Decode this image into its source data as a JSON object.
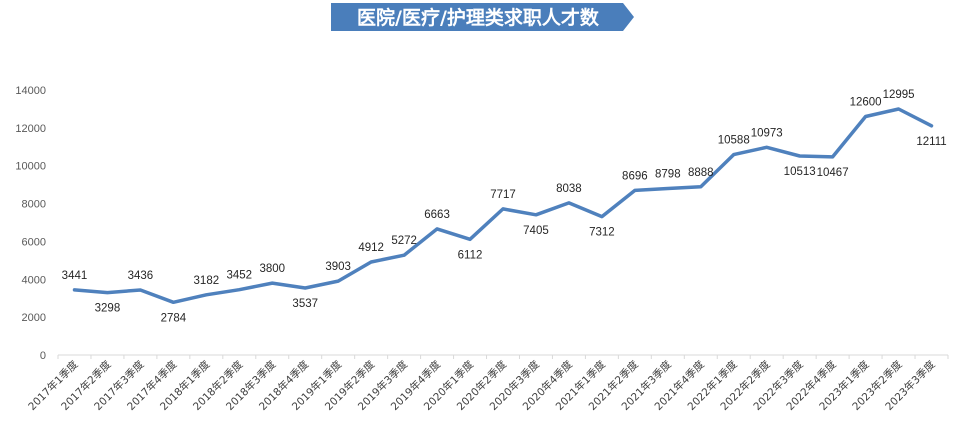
{
  "chart_data": {
    "type": "line",
    "title": "医院/医疗/护理类求职人才数",
    "xlabel": "",
    "ylabel": "",
    "categories": [
      "2017年1季度",
      "2017年2季度",
      "2017年3季度",
      "2017年4季度",
      "2018年1季度",
      "2018年2季度",
      "2018年3季度",
      "2018年4季度",
      "2019年1季度",
      "2019年2季度",
      "2019年3季度",
      "2019年4季度",
      "2020年1季度",
      "2020年2季度",
      "2020年3季度",
      "2020年4季度",
      "2021年1季度",
      "2021年2季度",
      "2021年3季度",
      "2021年4季度",
      "2022年1季度",
      "2022年2季度",
      "2022年3季度",
      "2022年4季度",
      "2023年1季度",
      "2023年2季度",
      "2023年3季度"
    ],
    "values": [
      3441,
      3298,
      3436,
      2784,
      3182,
      3452,
      3800,
      3537,
      3903,
      4912,
      5272,
      6663,
      6112,
      7717,
      7405,
      8038,
      7312,
      8696,
      8798,
      8888,
      10588,
      10973,
      10513,
      10467,
      12600,
      12995,
      12111
    ],
    "ylim": [
      0,
      14000
    ],
    "yticks": [
      0,
      2000,
      4000,
      6000,
      8000,
      10000,
      12000,
      14000
    ],
    "grid": false,
    "legend": "none",
    "colors": {
      "line": "#4F81BD",
      "title_banner": "#4A7EBB",
      "title_text": "#ffffff",
      "axis": "#d9d9d9"
    }
  }
}
